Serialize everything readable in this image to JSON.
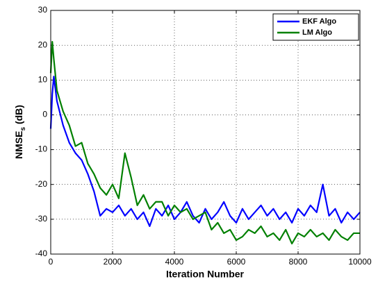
{
  "chart_data": {
    "type": "line",
    "xlabel": "Iteration Number",
    "ylabel": {
      "main": "NMSE",
      "sub": "s",
      "rest": " (dB)"
    },
    "x": [
      0,
      50,
      100,
      200,
      400,
      600,
      800,
      1000,
      1200,
      1400,
      1600,
      1800,
      2000,
      2200,
      2400,
      2600,
      2800,
      3000,
      3200,
      3400,
      3600,
      3800,
      4000,
      4200,
      4400,
      4600,
      4800,
      5000,
      5200,
      5400,
      5600,
      5800,
      6000,
      6200,
      6400,
      6600,
      6800,
      7000,
      7200,
      7400,
      7600,
      7800,
      8000,
      8200,
      8400,
      8600,
      8800,
      9000,
      9200,
      9400,
      9600,
      9800,
      10000
    ],
    "series": [
      {
        "name": "EKF Algo",
        "color": "#0000ff",
        "values": [
          -4,
          6,
          11,
          4,
          -3,
          -8,
          -11,
          -13,
          -17,
          -22,
          -29,
          -27,
          -28,
          -26,
          -29,
          -27,
          -30,
          -28,
          -32,
          -27,
          -29,
          -26,
          -30,
          -28,
          -25,
          -29,
          -31,
          -27,
          -30,
          -28,
          -25,
          -29,
          -31,
          -27,
          -30,
          -28,
          -26,
          -29,
          -27,
          -30,
          -28,
          -31,
          -27,
          -29,
          -26,
          -28,
          -20,
          -29,
          -27,
          -31,
          -28,
          -30,
          -28
        ]
      },
      {
        "name": "LM Algo",
        "color": "#008000",
        "values": [
          12,
          21,
          16,
          7,
          1,
          -3,
          -9,
          -8,
          -14,
          -17,
          -21,
          -23,
          -20,
          -24,
          -11,
          -18,
          -26,
          -23,
          -27,
          -25,
          -25,
          -29,
          -26,
          -28,
          -27,
          -30,
          -29,
          -28,
          -33,
          -31,
          -34,
          -33,
          -36,
          -35,
          -33,
          -34,
          -32,
          -35,
          -34,
          -36,
          -33,
          -37,
          -34,
          -35,
          -33,
          -35,
          -34,
          -36,
          -33,
          -35,
          -36,
          -34,
          -34
        ]
      }
    ],
    "xlim": [
      0,
      10000
    ],
    "xticks": [
      0,
      2000,
      4000,
      6000,
      8000,
      10000
    ],
    "ylim": [
      -40,
      30
    ],
    "yticks": [
      -40,
      -30,
      -20,
      -10,
      0,
      10,
      20,
      30
    ],
    "grid": true,
    "legend": "upper right"
  }
}
